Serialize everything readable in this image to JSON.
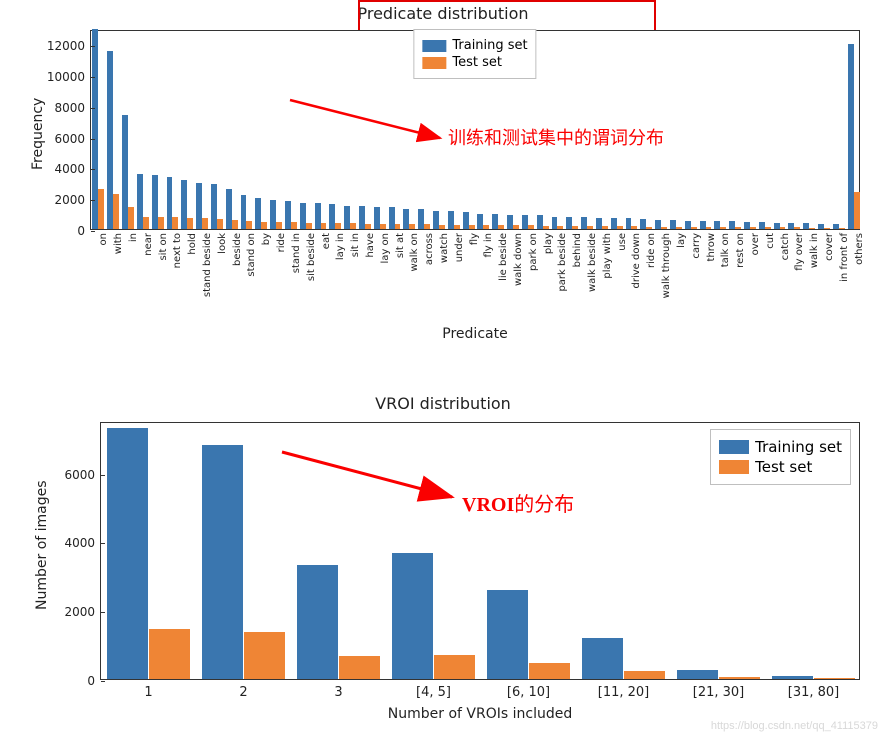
{
  "colors": {
    "training": "#3a76af",
    "test": "#ef8535",
    "axis": "#333333",
    "text": "#222222",
    "legend_border": "#bfbfbf",
    "red": "#e00000",
    "annotation_red": "#fa0000",
    "bg": "#ffffff",
    "watermark": "#d8d8d8"
  },
  "chart1": {
    "type": "grouped-bar",
    "title": "Predicate distribution",
    "xlabel": "Predicate",
    "ylabel": "Frequency",
    "ylim": [
      0,
      13000
    ],
    "yticks": [
      0,
      2000,
      4000,
      6000,
      8000,
      10000,
      12000
    ],
    "legend": {
      "position": "top-center",
      "items": [
        "Training set",
        "Test set"
      ]
    },
    "annotation": {
      "text": "训练和测试集中的谓词分布",
      "color": "#fa0000",
      "fontsize": 18
    },
    "red_box": true,
    "bar_width": 0.4,
    "categories": [
      "on",
      "with",
      "in",
      "near",
      "sit on",
      "next to",
      "hold",
      "stand beside",
      "look",
      "beside",
      "stand on",
      "by",
      "ride",
      "stand in",
      "sit beside",
      "eat",
      "lay in",
      "sit in",
      "have",
      "lay on",
      "sit at",
      "walk on",
      "across",
      "watch",
      "under",
      "fly",
      "fly in",
      "lie beside",
      "walk down",
      "park on",
      "play",
      "park beside",
      "behind",
      "walk beside",
      "play with",
      "use",
      "drive down",
      "ride on",
      "walk through",
      "lay",
      "carry",
      "throw",
      "talk on",
      "rest on",
      "over",
      "cut",
      "catch",
      "fly over",
      "walk in",
      "cover",
      "in front of",
      "others"
    ],
    "series": [
      {
        "name": "Training set",
        "color": "#3a76af",
        "values": [
          13000,
          11600,
          7400,
          3600,
          3500,
          3400,
          3200,
          3000,
          2900,
          2600,
          2200,
          2000,
          1900,
          1800,
          1700,
          1700,
          1600,
          1500,
          1500,
          1400,
          1400,
          1300,
          1300,
          1200,
          1200,
          1100,
          1000,
          1000,
          900,
          900,
          900,
          800,
          800,
          800,
          700,
          700,
          700,
          650,
          600,
          600,
          550,
          550,
          500,
          500,
          450,
          450,
          400,
          400,
          380,
          350,
          300,
          12000
        ]
      },
      {
        "name": "Test set",
        "color": "#ef8535",
        "values": [
          2600,
          2300,
          1400,
          800,
          780,
          760,
          730,
          700,
          650,
          600,
          520,
          480,
          450,
          440,
          420,
          400,
          380,
          370,
          350,
          340,
          330,
          320,
          300,
          290,
          280,
          270,
          260,
          250,
          240,
          230,
          220,
          210,
          200,
          200,
          190,
          180,
          170,
          160,
          150,
          140,
          130,
          130,
          120,
          120,
          110,
          110,
          100,
          100,
          95,
          90,
          80,
          2400
        ]
      }
    ]
  },
  "chart2": {
    "type": "grouped-bar",
    "title": "VROI distribution",
    "xlabel": "Number of VROIs included",
    "ylabel": "Number of images",
    "ylim": [
      0,
      7500
    ],
    "yticks": [
      0,
      2000,
      4000,
      6000
    ],
    "legend": {
      "position": "top-right",
      "items": [
        "Training set",
        "Test set"
      ]
    },
    "annotation": {
      "text": "VROI的分布",
      "color": "#fa0000",
      "fontsize": 20,
      "bold_prefix": "VROI"
    },
    "bar_width": 0.44,
    "categories": [
      "1",
      "2",
      "3",
      "[4, 5]",
      "[6, 10]",
      "[11, 20]",
      "[21, 30]",
      "[31, 80]"
    ],
    "series": [
      {
        "name": "Training set",
        "color": "#3a76af",
        "values": [
          7300,
          6800,
          3300,
          3650,
          2600,
          1200,
          250,
          80
        ]
      },
      {
        "name": "Test set",
        "color": "#ef8535",
        "values": [
          1450,
          1380,
          660,
          700,
          480,
          230,
          60,
          30
        ]
      }
    ]
  },
  "watermark": "https://blog.csdn.net/qq_41115379"
}
